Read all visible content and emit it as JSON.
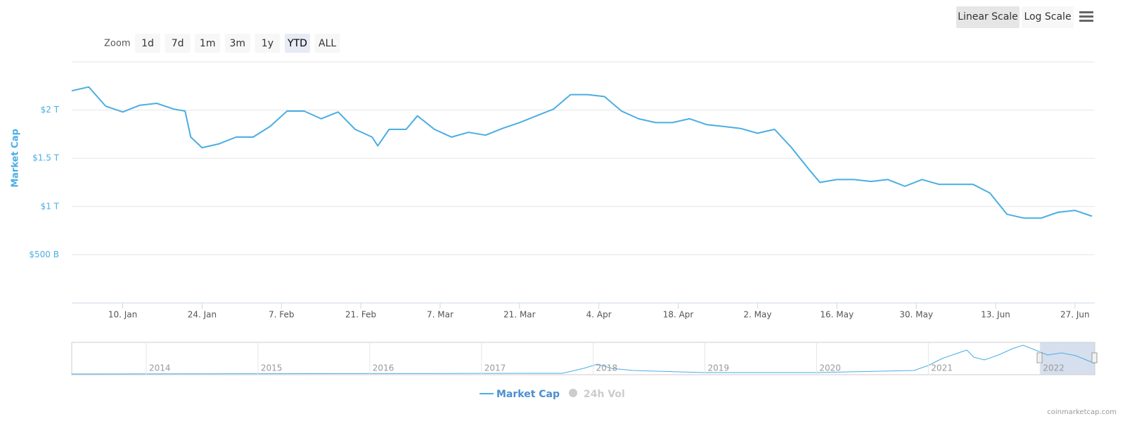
{
  "chart_data": {
    "type": "line",
    "y_axis_label": "Market Cap",
    "log_scale": false,
    "grid": true,
    "x": [
      "2022-01-01",
      "2022-01-04",
      "2022-01-07",
      "2022-01-10",
      "2022-01-13",
      "2022-01-16",
      "2022-01-19",
      "2022-01-21",
      "2022-01-22",
      "2022-01-24",
      "2022-01-27",
      "2022-01-30",
      "2022-02-02",
      "2022-02-05",
      "2022-02-08",
      "2022-02-11",
      "2022-02-14",
      "2022-02-17",
      "2022-02-20",
      "2022-02-23",
      "2022-02-24",
      "2022-02-26",
      "2022-03-01",
      "2022-03-03",
      "2022-03-06",
      "2022-03-09",
      "2022-03-12",
      "2022-03-15",
      "2022-03-18",
      "2022-03-21",
      "2022-03-24",
      "2022-03-27",
      "2022-03-30",
      "2022-04-02",
      "2022-04-05",
      "2022-04-08",
      "2022-04-11",
      "2022-04-14",
      "2022-04-17",
      "2022-04-20",
      "2022-04-23",
      "2022-04-26",
      "2022-04-29",
      "2022-05-02",
      "2022-05-05",
      "2022-05-08",
      "2022-05-11",
      "2022-05-13",
      "2022-05-16",
      "2022-05-19",
      "2022-05-22",
      "2022-05-25",
      "2022-05-28",
      "2022-05-31",
      "2022-06-03",
      "2022-06-06",
      "2022-06-09",
      "2022-06-12",
      "2022-06-15",
      "2022-06-18",
      "2022-06-21",
      "2022-06-24",
      "2022-06-27",
      "2022-06-30"
    ],
    "series": [
      {
        "name": "Market Cap",
        "color": "#4aaee3",
        "values": [
          2200000000000.0,
          2240000000000.0,
          2040000000000.0,
          1980000000000.0,
          2050000000000.0,
          2070000000000.0,
          2010000000000.0,
          1990000000000.0,
          1720000000000.0,
          1610000000000.0,
          1650000000000.0,
          1720000000000.0,
          1720000000000.0,
          1830000000000.0,
          1990000000000.0,
          1990000000000.0,
          1910000000000.0,
          1980000000000.0,
          1800000000000.0,
          1720000000000.0,
          1630000000000.0,
          1800000000000.0,
          1800000000000.0,
          1940000000000.0,
          1800000000000.0,
          1720000000000.0,
          1770000000000.0,
          1740000000000.0,
          1810000000000.0,
          1870000000000.0,
          1940000000000.0,
          2010000000000.0,
          2160000000000.0,
          2160000000000.0,
          2140000000000.0,
          1990000000000.0,
          1910000000000.0,
          1870000000000.0,
          1870000000000.0,
          1910000000000.0,
          1850000000000.0,
          1830000000000.0,
          1810000000000.0,
          1760000000000.0,
          1800000000000.0,
          1610000000000.0,
          1390000000000.0,
          1250000000000.0,
          1280000000000.0,
          1280000000000.0,
          1260000000000.0,
          1280000000000.0,
          1210000000000.0,
          1280000000000.0,
          1230000000000.0,
          1230000000000.0,
          1230000000000.0,
          1140000000000.0,
          920000000000.0,
          880000000000.0,
          880000000000.0,
          940000000000.0,
          960000000000.0,
          900000000000.0
        ]
      }
    ],
    "legend_inactive": [
      "24h Vol"
    ],
    "xlim": [
      "2022-01-01",
      "2022-06-30"
    ],
    "xticks": [
      {
        "value": "2022-01-10",
        "label": "10. Jan"
      },
      {
        "value": "2022-01-24",
        "label": "24. Jan"
      },
      {
        "value": "2022-02-07",
        "label": "7. Feb"
      },
      {
        "value": "2022-02-21",
        "label": "21. Feb"
      },
      {
        "value": "2022-03-07",
        "label": "7. Mar"
      },
      {
        "value": "2022-03-21",
        "label": "21. Mar"
      },
      {
        "value": "2022-04-04",
        "label": "4. Apr"
      },
      {
        "value": "2022-04-18",
        "label": "18. Apr"
      },
      {
        "value": "2022-05-02",
        "label": "2. May"
      },
      {
        "value": "2022-05-16",
        "label": "16. May"
      },
      {
        "value": "2022-05-30",
        "label": "30. May"
      },
      {
        "value": "2022-06-13",
        "label": "13. Jun"
      },
      {
        "value": "2022-06-27",
        "label": "27. Jun"
      }
    ],
    "ylim": [
      0,
      2500000000000.0
    ],
    "yticks": [
      {
        "value": 500000000000.0,
        "label": "$500 B"
      },
      {
        "value": 1000000000000.0,
        "label": "$1 T"
      },
      {
        "value": 1500000000000.0,
        "label": "$1.5 T"
      },
      {
        "value": 2000000000000.0,
        "label": "$2 T"
      }
    ],
    "zoom_label": "Zoom",
    "zoom_buttons": [
      {
        "label": "1d"
      },
      {
        "label": "7d"
      },
      {
        "label": "1m"
      },
      {
        "label": "3m"
      },
      {
        "label": "1y"
      },
      {
        "label": "YTD",
        "active": true
      },
      {
        "label": "ALL"
      }
    ],
    "scale_buttons": [
      {
        "label": "Linear Scale",
        "active": true
      },
      {
        "label": "Log Scale"
      }
    ],
    "navigator_labels": [
      "2014",
      "2015",
      "2016",
      "2017",
      "2018",
      "2019",
      "2020",
      "2021",
      "2022"
    ],
    "credit": "coinmarketcap.com"
  }
}
